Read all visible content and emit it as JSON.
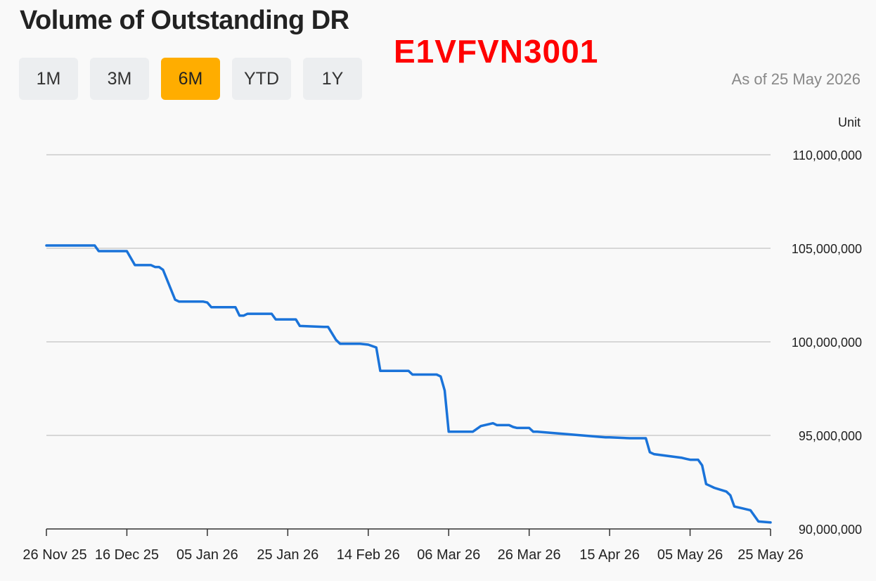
{
  "header": {
    "title": "Volume of Outstanding DR",
    "overlay_code": "E1VFVN3001",
    "as_of": "As of 25 May 2026",
    "unit_label": "Unit"
  },
  "range_buttons": [
    {
      "label": "1M",
      "active": false
    },
    {
      "label": "3M",
      "active": false
    },
    {
      "label": "6M",
      "active": true
    },
    {
      "label": "YTD",
      "active": false
    },
    {
      "label": "1Y",
      "active": false
    }
  ],
  "colors": {
    "line": "#1a73d9",
    "active_button": "#ffad00",
    "grid": "#cccccc",
    "overlay_code": "#ff0000"
  },
  "chart_data": {
    "type": "line",
    "title": "Volume of Outstanding DR",
    "xlabel": "",
    "ylabel": "",
    "ylim": [
      90000000,
      110000000
    ],
    "y_ticks": [
      90000000,
      95000000,
      100000000,
      105000000,
      110000000
    ],
    "y_tick_labels": [
      "90,000,000",
      "95,000,000",
      "100,000,000",
      "105,000,000",
      "110,000,000"
    ],
    "x_range": [
      "2025-11-26",
      "2026-05-25"
    ],
    "x_ticks": [
      "2025-11-26",
      "2025-12-16",
      "2026-01-05",
      "2026-01-25",
      "2026-02-14",
      "2026-03-06",
      "2026-03-26",
      "2026-04-15",
      "2026-05-05",
      "2026-05-25"
    ],
    "x_tick_labels": [
      "26 Nov 25",
      "16 Dec 25",
      "05 Jan 26",
      "25 Jan 26",
      "14 Feb 26",
      "06 Mar 26",
      "26 Mar 26",
      "15 Apr 26",
      "05 May 26",
      "25 May 26"
    ],
    "grid": true,
    "series": [
      {
        "x": [
          "2025-11-26",
          "2025-12-08",
          "2025-12-09",
          "2025-12-16",
          "2025-12-18",
          "2025-12-22",
          "2025-12-23",
          "2025-12-24",
          "2025-12-25",
          "2025-12-28",
          "2025-12-29",
          "2026-01-04",
          "2026-01-05",
          "2026-01-06",
          "2026-01-08",
          "2026-01-12",
          "2026-01-13",
          "2026-01-14",
          "2026-01-15",
          "2026-01-21",
          "2026-01-22",
          "2026-01-23",
          "2026-01-27",
          "2026-01-28",
          "2026-02-03",
          "2026-02-04",
          "2026-02-06",
          "2026-02-07",
          "2026-02-12",
          "2026-02-14",
          "2026-02-16",
          "2026-02-17",
          "2026-02-24",
          "2026-02-25",
          "2026-03-03",
          "2026-03-04",
          "2026-03-05",
          "2026-03-06",
          "2026-03-12",
          "2026-03-14",
          "2026-03-17",
          "2026-03-18",
          "2026-03-21",
          "2026-03-22",
          "2026-03-23",
          "2026-03-26",
          "2026-03-27",
          "2026-03-28",
          "2026-04-14",
          "2026-04-15",
          "2026-04-20",
          "2026-04-21",
          "2026-04-22",
          "2026-04-24",
          "2026-04-25",
          "2026-04-26",
          "2026-05-03",
          "2026-05-04",
          "2026-05-05",
          "2026-05-07",
          "2026-05-08",
          "2026-05-09",
          "2026-05-10",
          "2026-05-11",
          "2026-05-14",
          "2026-05-15",
          "2026-05-16",
          "2026-05-18",
          "2026-05-20",
          "2026-05-22",
          "2026-05-25"
        ],
        "values": [
          105150000,
          105150000,
          104850000,
          104850000,
          104100000,
          104100000,
          104000000,
          104000000,
          103850000,
          102250000,
          102150000,
          102150000,
          102100000,
          101850000,
          101850000,
          101850000,
          101400000,
          101400000,
          101500000,
          101500000,
          101200000,
          101200000,
          101200000,
          100850000,
          100800000,
          100800000,
          100100000,
          99900000,
          99900000,
          99850000,
          99700000,
          98450000,
          98450000,
          98250000,
          98250000,
          98150000,
          97400000,
          95200000,
          95200000,
          95500000,
          95650000,
          95550000,
          95550000,
          95450000,
          95400000,
          95400000,
          95200000,
          95200000,
          94900000,
          94900000,
          94850000,
          94850000,
          94850000,
          94850000,
          94100000,
          94000000,
          93800000,
          93750000,
          93700000,
          93700000,
          93400000,
          92400000,
          92300000,
          92200000,
          92000000,
          91800000,
          91200000,
          91100000,
          91000000,
          90400000,
          90350000
        ]
      }
    ]
  }
}
